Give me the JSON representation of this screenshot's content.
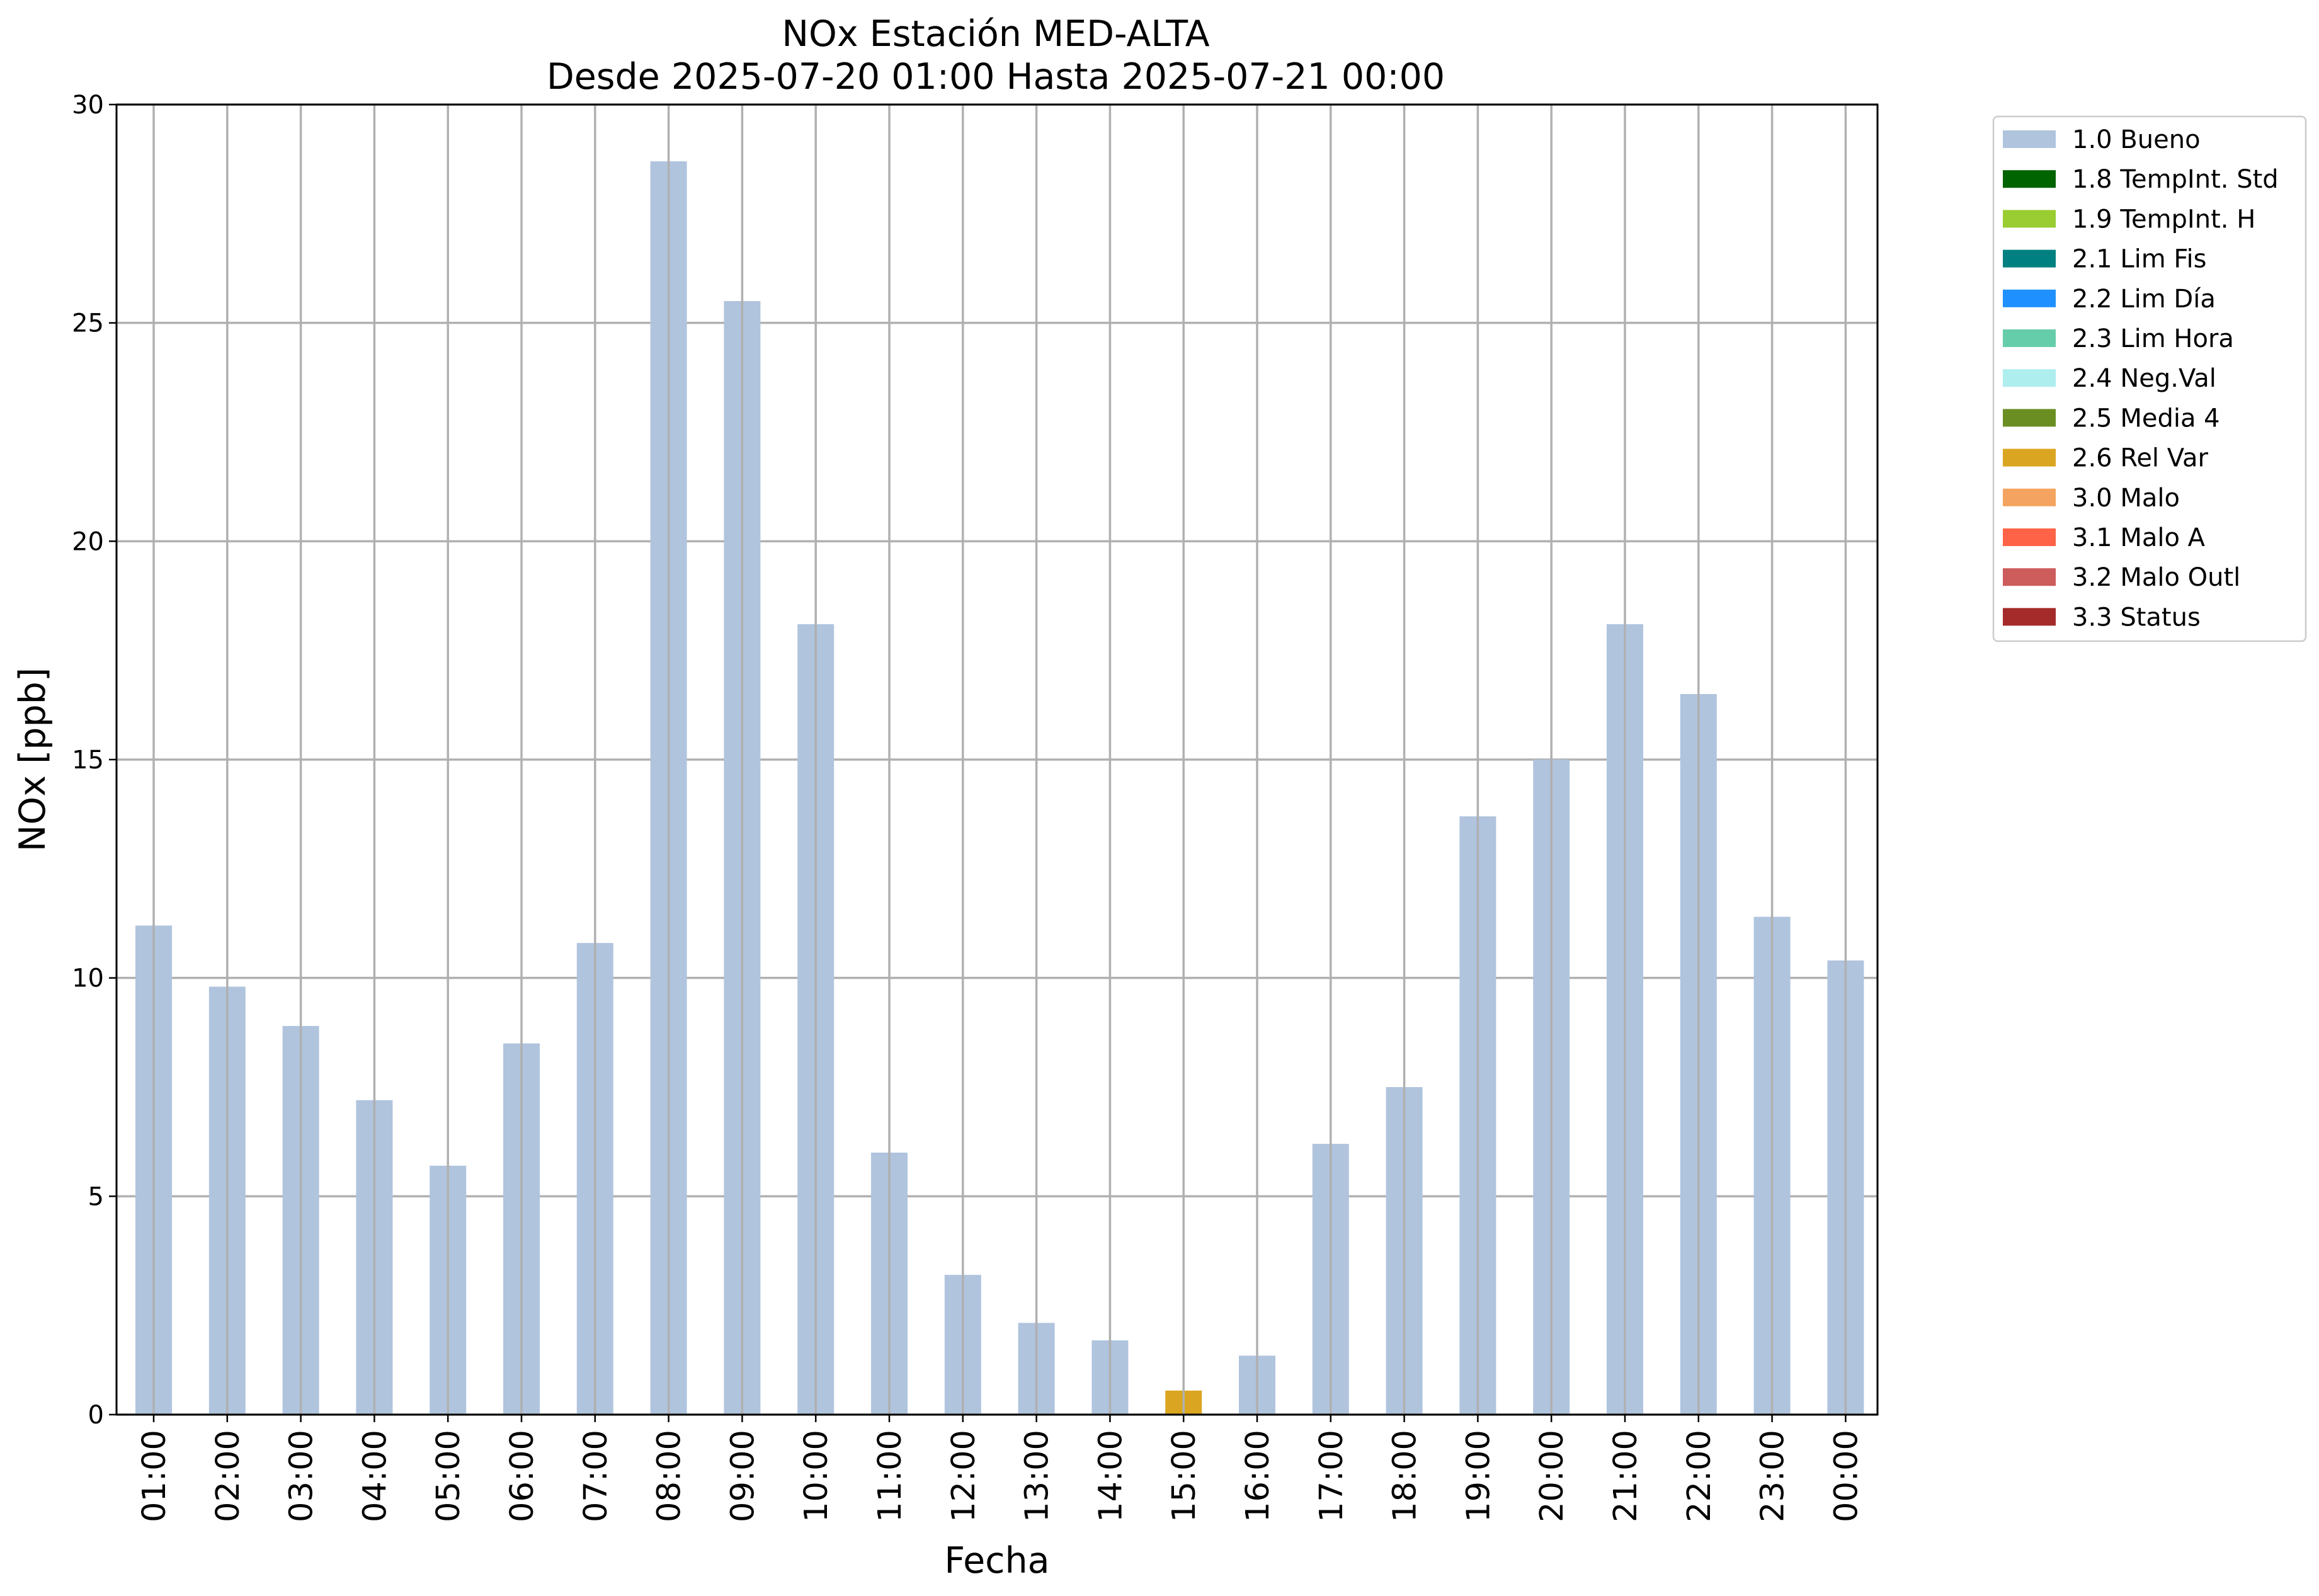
{
  "chart_data": {
    "type": "bar",
    "title": "NOx Estación MED-ALTA",
    "subtitle": "Desde 2025-07-20 01:00 Hasta 2025-07-21 00:00",
    "xlabel": "Fecha",
    "ylabel": "NOx [ppb]",
    "ylim": [
      0,
      30
    ],
    "yticks": [
      0,
      5,
      10,
      15,
      20,
      25,
      30
    ],
    "grid": true,
    "legend_position": "outside-right-top",
    "categories": [
      "01:00",
      "02:00",
      "03:00",
      "04:00",
      "05:00",
      "06:00",
      "07:00",
      "08:00",
      "09:00",
      "10:00",
      "11:00",
      "12:00",
      "13:00",
      "14:00",
      "15:00",
      "16:00",
      "17:00",
      "18:00",
      "19:00",
      "20:00",
      "21:00",
      "22:00",
      "23:00",
      "00:00"
    ],
    "values": [
      11.2,
      9.8,
      8.9,
      7.2,
      5.7,
      8.5,
      10.8,
      28.7,
      25.5,
      18.1,
      6.0,
      3.2,
      2.1,
      1.7,
      0.55,
      1.35,
      6.2,
      7.5,
      13.7,
      15.0,
      18.1,
      16.5,
      11.4,
      10.4
    ],
    "bar_flags": [
      "1.0 Bueno",
      "1.0 Bueno",
      "1.0 Bueno",
      "1.0 Bueno",
      "1.0 Bueno",
      "1.0 Bueno",
      "1.0 Bueno",
      "1.0 Bueno",
      "1.0 Bueno",
      "1.0 Bueno",
      "1.0 Bueno",
      "1.0 Bueno",
      "1.0 Bueno",
      "1.0 Bueno",
      "2.6 Rel Var",
      "1.0 Bueno",
      "1.0 Bueno",
      "1.0 Bueno",
      "1.0 Bueno",
      "1.0 Bueno",
      "1.0 Bueno",
      "1.0 Bueno",
      "1.0 Bueno",
      "1.0 Bueno"
    ],
    "legend": [
      {
        "label": "1.0 Bueno",
        "color": "#b0c4de"
      },
      {
        "label": "1.8 TempInt. Std",
        "color": "#006400"
      },
      {
        "label": "1.9 TempInt. H",
        "color": "#9acd32"
      },
      {
        "label": "2.1 Lim Fis",
        "color": "#008080"
      },
      {
        "label": "2.2 Lim Día",
        "color": "#1e90ff"
      },
      {
        "label": "2.3 Lim Hora",
        "color": "#66cdaa"
      },
      {
        "label": "2.4 Neg.Val",
        "color": "#afeeee"
      },
      {
        "label": "2.5 Media 4",
        "color": "#6b8e23"
      },
      {
        "label": "2.6 Rel Var",
        "color": "#daa520"
      },
      {
        "label": "3.0 Malo",
        "color": "#f4a460"
      },
      {
        "label": "3.1 Malo A",
        "color": "#ff6347"
      },
      {
        "label": "3.2 Malo Outl",
        "color": "#cd5c5c"
      },
      {
        "label": "3.3 Status",
        "color": "#a52a2a"
      }
    ]
  }
}
